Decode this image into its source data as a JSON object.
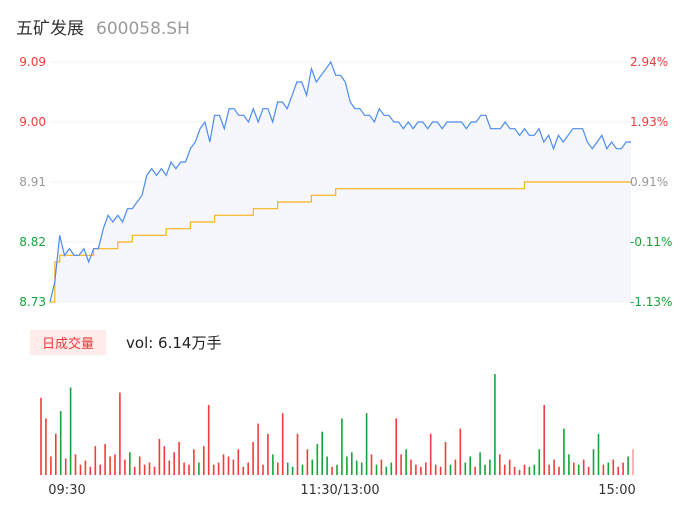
{
  "header": {
    "name": "五矿发展",
    "code": "600058.SH"
  },
  "volume_panel": {
    "tab_label": "日成交量",
    "vol_text": "vol: 6.14万手"
  },
  "colors": {
    "price_line": "#4a8cf0",
    "avg_line": "#f5b417",
    "area_fill": "#f5f7fd",
    "up": "#f03c3c",
    "down": "#18a33a",
    "flat": "#999999",
    "last_bar": "#f6a3a3"
  },
  "chart_data": [
    {
      "type": "line",
      "title": "",
      "prev_close": 8.82,
      "ylim": [
        8.73,
        9.09
      ],
      "y_ticks_left": [
        "9.09",
        "9.00",
        "8.91",
        "8.82",
        "8.73"
      ],
      "y_ticks_right": [
        "2.94%",
        "1.93%",
        "0.91%",
        "-0.11%",
        "-1.13%"
      ],
      "x_ticks": [
        "09:30",
        "11:30/13:00",
        "15:00"
      ],
      "series": [
        {
          "role": "price",
          "x": [
            0,
            2,
            4,
            6,
            8,
            10,
            12,
            14,
            16,
            18,
            20,
            22,
            24,
            26,
            28,
            30,
            32,
            34,
            36,
            38,
            40,
            42,
            44,
            46,
            48,
            50,
            52,
            54,
            56,
            58,
            60,
            62,
            64,
            66,
            68,
            70,
            72,
            74,
            76,
            78,
            80,
            82,
            84,
            86,
            88,
            90,
            92,
            94,
            96,
            98,
            100,
            102,
            104,
            106,
            108,
            110,
            112,
            114,
            116,
            118,
            120,
            122,
            124,
            126,
            128,
            130,
            132,
            134,
            136,
            138,
            140,
            142,
            144,
            146,
            148,
            150,
            152,
            154,
            156,
            158,
            160,
            162,
            164,
            166,
            168,
            170,
            172,
            174,
            176,
            178,
            180,
            182,
            184,
            186,
            188,
            190,
            192,
            194,
            196,
            198,
            200,
            202,
            204,
            206,
            208,
            210,
            212,
            214,
            216,
            218,
            220,
            222,
            224,
            226,
            228,
            230,
            232,
            234,
            236,
            238,
            240
          ],
          "values": [
            8.73,
            8.76,
            8.83,
            8.8,
            8.81,
            8.8,
            8.8,
            8.81,
            8.79,
            8.81,
            8.81,
            8.84,
            8.86,
            8.85,
            8.86,
            8.85,
            8.87,
            8.87,
            8.88,
            8.89,
            8.92,
            8.93,
            8.92,
            8.93,
            8.92,
            8.94,
            8.93,
            8.94,
            8.94,
            8.96,
            8.97,
            8.99,
            9.0,
            8.97,
            9.01,
            9.01,
            8.99,
            9.02,
            9.02,
            9.01,
            9.01,
            9.0,
            9.02,
            9.0,
            9.02,
            9.02,
            9.0,
            9.03,
            9.03,
            9.02,
            9.04,
            9.06,
            9.06,
            9.04,
            9.08,
            9.06,
            9.07,
            9.08,
            9.09,
            9.07,
            9.07,
            9.06,
            9.03,
            9.02,
            9.02,
            9.01,
            9.01,
            9.0,
            9.02,
            9.01,
            9.01,
            9.0,
            9.0,
            8.99,
            9.0,
            8.99,
            9.0,
            9.0,
            8.99,
            9.0,
            9.0,
            8.99,
            9.0,
            9.0,
            9.0,
            9.0,
            8.99,
            9.0,
            9.0,
            9.01,
            9.01,
            8.99,
            8.99,
            8.99,
            9.0,
            8.99,
            8.99,
            8.98,
            8.99,
            8.98,
            8.98,
            8.99,
            8.97,
            8.98,
            8.96,
            8.98,
            8.97,
            8.98,
            8.99,
            8.99,
            8.99,
            8.97,
            8.96,
            8.97,
            8.98,
            8.96,
            8.97,
            8.96,
            8.96,
            8.97,
            8.97
          ]
        },
        {
          "role": "average",
          "x": [
            0,
            2,
            4,
            6,
            8,
            10,
            12,
            14,
            16,
            18,
            20,
            22,
            24,
            26,
            28,
            30,
            32,
            34,
            36,
            38,
            40,
            42,
            44,
            46,
            48,
            50,
            52,
            54,
            56,
            58,
            60,
            62,
            64,
            66,
            68,
            70,
            72,
            74,
            76,
            78,
            80,
            82,
            84,
            86,
            88,
            90,
            92,
            94,
            96,
            98,
            100,
            102,
            104,
            106,
            108,
            110,
            112,
            114,
            116,
            118,
            120,
            122,
            124,
            126,
            128,
            130,
            132,
            134,
            136,
            138,
            140,
            142,
            144,
            146,
            148,
            150,
            152,
            154,
            156,
            158,
            160,
            162,
            164,
            166,
            168,
            170,
            172,
            174,
            176,
            178,
            180,
            182,
            184,
            186,
            188,
            190,
            192,
            194,
            196,
            198,
            200,
            202,
            204,
            206,
            208,
            210,
            212,
            214,
            216,
            218,
            220,
            222,
            224,
            226,
            228,
            230,
            232,
            234,
            236,
            238,
            240
          ],
          "values": [
            8.73,
            8.79,
            8.8,
            8.8,
            8.8,
            8.8,
            8.8,
            8.8,
            8.8,
            8.81,
            8.81,
            8.81,
            8.81,
            8.81,
            8.82,
            8.82,
            8.82,
            8.83,
            8.83,
            8.83,
            8.83,
            8.83,
            8.83,
            8.83,
            8.84,
            8.84,
            8.84,
            8.84,
            8.84,
            8.85,
            8.85,
            8.85,
            8.85,
            8.85,
            8.86,
            8.86,
            8.86,
            8.86,
            8.86,
            8.86,
            8.86,
            8.86,
            8.87,
            8.87,
            8.87,
            8.87,
            8.87,
            8.88,
            8.88,
            8.88,
            8.88,
            8.88,
            8.88,
            8.88,
            8.89,
            8.89,
            8.89,
            8.89,
            8.89,
            8.9,
            8.9,
            8.9,
            8.9,
            8.9,
            8.9,
            8.9,
            8.9,
            8.9,
            8.9,
            8.9,
            8.9,
            8.9,
            8.9,
            8.9,
            8.9,
            8.9,
            8.9,
            8.9,
            8.9,
            8.9,
            8.9,
            8.9,
            8.9,
            8.9,
            8.9,
            8.9,
            8.9,
            8.9,
            8.9,
            8.9,
            8.9,
            8.9,
            8.9,
            8.9,
            8.9,
            8.9,
            8.9,
            8.9,
            8.91,
            8.91,
            8.91,
            8.91,
            8.91,
            8.91,
            8.91,
            8.91,
            8.91,
            8.91,
            8.91,
            8.91,
            8.91,
            8.91,
            8.91,
            8.91,
            8.91,
            8.91,
            8.91,
            8.91,
            8.91,
            8.91,
            8.91
          ]
        }
      ]
    },
    {
      "type": "bar",
      "title": "",
      "x": [
        0,
        2,
        4,
        6,
        8,
        10,
        12,
        14,
        16,
        18,
        20,
        22,
        24,
        26,
        28,
        30,
        32,
        34,
        36,
        38,
        40,
        42,
        44,
        46,
        48,
        50,
        52,
        54,
        56,
        58,
        60,
        62,
        64,
        66,
        68,
        70,
        72,
        74,
        76,
        78,
        80,
        82,
        84,
        86,
        88,
        90,
        92,
        94,
        96,
        98,
        100,
        102,
        104,
        106,
        108,
        110,
        112,
        114,
        116,
        118,
        120,
        122,
        124,
        126,
        128,
        130,
        132,
        134,
        136,
        138,
        140,
        142,
        144,
        146,
        148,
        150,
        152,
        154,
        156,
        158,
        160,
        162,
        164,
        166,
        168,
        170,
        172,
        174,
        176,
        178,
        180,
        182,
        184,
        186,
        188,
        190,
        192,
        194,
        196,
        198,
        200,
        202,
        204,
        206,
        208,
        210,
        212,
        214,
        216,
        218,
        220,
        222,
        224,
        226,
        228,
        230,
        232,
        234,
        236,
        238,
        240
      ],
      "values": [
        75,
        55,
        18,
        40,
        62,
        16,
        85,
        20,
        10,
        14,
        8,
        28,
        10,
        30,
        18,
        20,
        80,
        15,
        22,
        8,
        18,
        10,
        12,
        8,
        35,
        28,
        14,
        22,
        32,
        12,
        10,
        25,
        12,
        28,
        68,
        10,
        12,
        20,
        18,
        15,
        25,
        8,
        12,
        32,
        50,
        10,
        40,
        20,
        12,
        60,
        12,
        8,
        40,
        10,
        25,
        15,
        30,
        42,
        18,
        8,
        10,
        55,
        18,
        22,
        14,
        12,
        60,
        20,
        10,
        15,
        8,
        12,
        55,
        20,
        25,
        15,
        10,
        8,
        12,
        40,
        10,
        8,
        32,
        10,
        15,
        45,
        12,
        18,
        8,
        22,
        10,
        15,
        98,
        20,
        10,
        15,
        8,
        5,
        10,
        8,
        10,
        25,
        68,
        10,
        15,
        8,
        45,
        20,
        12,
        10,
        15,
        8,
        25,
        40,
        10,
        12,
        15,
        8,
        12,
        18,
        25
      ],
      "directions": [
        "up",
        "up",
        "up",
        "up",
        "down",
        "up",
        "down",
        "up",
        "up",
        "up",
        "up",
        "up",
        "up",
        "up",
        "up",
        "up",
        "up",
        "up",
        "down",
        "up",
        "up",
        "up",
        "up",
        "up",
        "up",
        "up",
        "up",
        "up",
        "up",
        "up",
        "up",
        "up",
        "down",
        "up",
        "up",
        "up",
        "up",
        "up",
        "up",
        "up",
        "up",
        "up",
        "up",
        "up",
        "up",
        "up",
        "up",
        "down",
        "up",
        "up",
        "down",
        "down",
        "up",
        "down",
        "up",
        "down",
        "down",
        "down",
        "down",
        "up",
        "down",
        "down",
        "down",
        "down",
        "down",
        "down",
        "down",
        "up",
        "down",
        "up",
        "down",
        "down",
        "up",
        "up",
        "down",
        "up",
        "up",
        "up",
        "up",
        "up",
        "up",
        "up",
        "up",
        "down",
        "up",
        "up",
        "down",
        "down",
        "up",
        "down",
        "down",
        "down",
        "down",
        "up",
        "up",
        "up",
        "up",
        "up",
        "up",
        "down",
        "down",
        "down",
        "up",
        "up",
        "up",
        "up",
        "down",
        "down",
        "up",
        "down",
        "up",
        "up",
        "down",
        "down",
        "up",
        "down",
        "up",
        "up",
        "up",
        "down",
        "flat"
      ]
    }
  ]
}
